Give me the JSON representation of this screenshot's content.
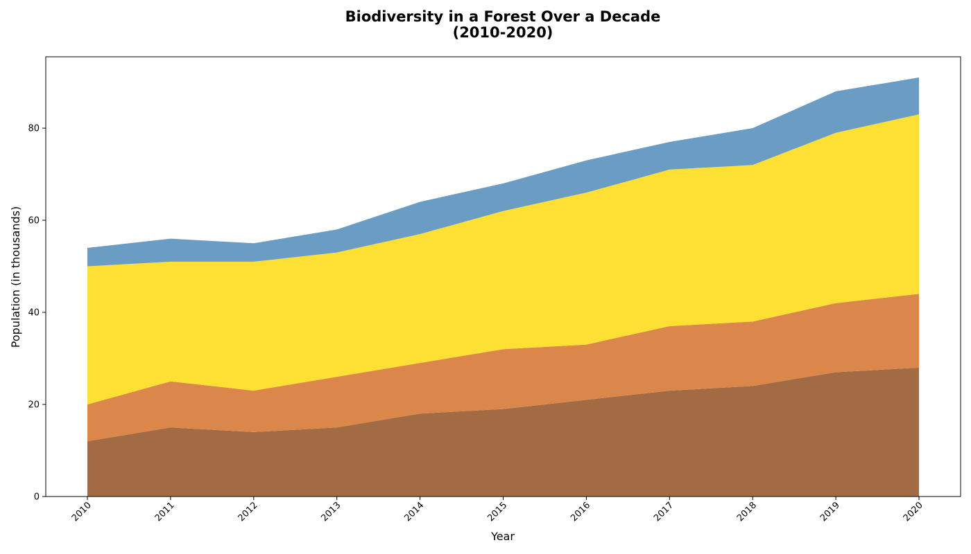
{
  "chart_data": {
    "type": "area",
    "stacked": true,
    "title_line1": "Biodiversity in a Forest Over a Decade",
    "title_line2": "(2010-2020)",
    "xlabel": "Year",
    "ylabel": "Population (in thousands)",
    "x": [
      "2010",
      "2011",
      "2012",
      "2013",
      "2014",
      "2015",
      "2016",
      "2017",
      "2018",
      "2019",
      "2020"
    ],
    "ylim": [
      0,
      95.5
    ],
    "yticks": [
      "0",
      "20",
      "40",
      "60",
      "80"
    ],
    "grid": false,
    "legend": "none",
    "series": [
      {
        "values": [
          12,
          15,
          14,
          15,
          18,
          19,
          21,
          23,
          24,
          27,
          28
        ],
        "color": "#a36b44"
      },
      {
        "values": [
          8,
          10,
          9,
          11,
          11,
          13,
          12,
          14,
          14,
          15,
          16
        ],
        "color": "#db864b"
      },
      {
        "values": [
          30,
          26,
          28,
          27,
          28,
          30,
          33,
          34,
          34,
          37,
          39
        ],
        "color": "#fee034"
      },
      {
        "values": [
          4,
          5,
          4,
          5,
          7,
          6,
          7,
          6,
          8,
          9,
          8
        ],
        "color": "#6b9cc4"
      }
    ]
  }
}
